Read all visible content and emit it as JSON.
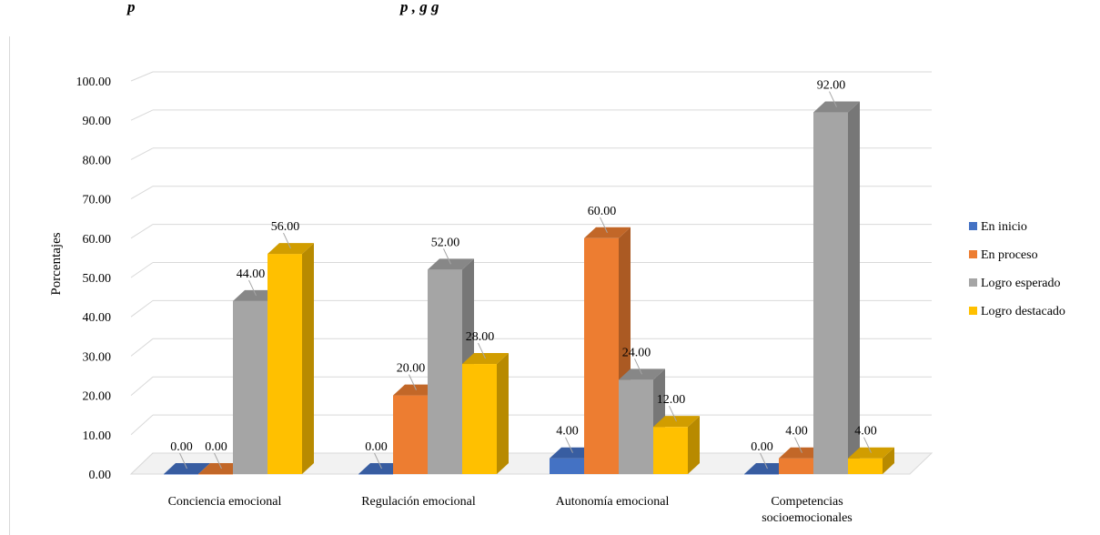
{
  "caption": {
    "part1": "p",
    "part2": "p                                                  ,  g             g"
  },
  "chart_data": {
    "type": "bar",
    "title": "",
    "xlabel": "",
    "ylabel": "Porcentajes",
    "ylim": [
      0,
      100
    ],
    "yticks": [
      "0.00",
      "10.00",
      "20.00",
      "30.00",
      "40.00",
      "50.00",
      "60.00",
      "70.00",
      "80.00",
      "90.00",
      "100.00"
    ],
    "grid": true,
    "legend_position": "right",
    "style": "3d-clustered-column",
    "categories": [
      [
        "Conciencia emocional"
      ],
      [
        "Regulación emocional"
      ],
      [
        "Autonomía emocional"
      ],
      [
        "Competencias",
        "socioemocionales"
      ]
    ],
    "series": [
      {
        "name": "En inicio",
        "color": "#4472c4",
        "values": [
          0,
          0,
          4,
          0
        ],
        "labels": [
          "0.00",
          "0.00",
          "4.00",
          "0.00"
        ]
      },
      {
        "name": "En proceso",
        "color": "#ed7d31",
        "values": [
          0,
          20,
          60,
          4
        ],
        "labels": [
          "0.00",
          "20.00",
          "60.00",
          "4.00"
        ]
      },
      {
        "name": "Logro esperado",
        "color": "#a5a5a5",
        "values": [
          44,
          52,
          24,
          92
        ],
        "labels": [
          "44.00",
          "52.00",
          "24.00",
          "92.00"
        ]
      },
      {
        "name": "Logro destacado",
        "color": "#ffc000",
        "values": [
          56,
          28,
          12,
          4
        ],
        "labels": [
          "56.00",
          "28.00",
          "12.00",
          "4.00"
        ]
      }
    ]
  }
}
